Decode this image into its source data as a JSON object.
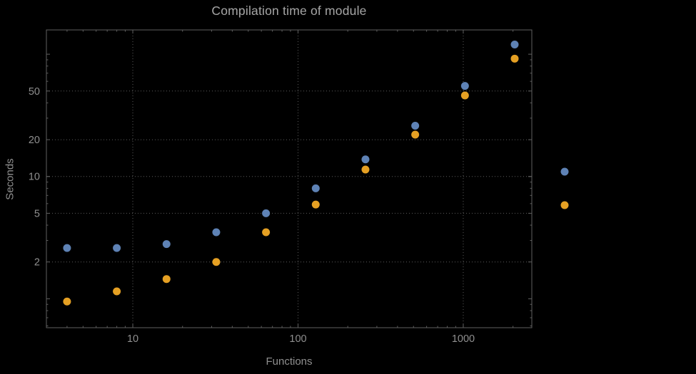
{
  "colors": {
    "background": "#000000",
    "frame": "#606060",
    "grid": "#5c5c5c",
    "tick_text": "#8f8f8f",
    "title_text": "#a6a6a6",
    "series1": "#5e82b5",
    "series2": "#e5a023"
  },
  "chart_data": {
    "type": "scatter",
    "title": "Compilation time of module",
    "xlabel": "Functions",
    "ylabel": "Seconds",
    "xscale": "log",
    "yscale": "log",
    "xlim": [
      3,
      2600
    ],
    "ylim": [
      0.58,
      158
    ],
    "grid": true,
    "legend_position": "right-outside",
    "x_ticks": [
      {
        "value": 10,
        "label": "10"
      },
      {
        "value": 100,
        "label": "100"
      },
      {
        "value": 1000,
        "label": "1000"
      }
    ],
    "y_ticks": [
      {
        "value": 2,
        "label": "2"
      },
      {
        "value": 5,
        "label": "5"
      },
      {
        "value": 10,
        "label": "10"
      },
      {
        "value": 20,
        "label": "20"
      },
      {
        "value": 50,
        "label": "50"
      }
    ],
    "x": [
      4,
      8,
      16,
      32,
      64,
      128,
      256,
      512,
      1024,
      2048
    ],
    "series": [
      {
        "color": "#5e82b5",
        "values": [
          2.6,
          2.6,
          2.8,
          3.5,
          5.0,
          8.0,
          13.8,
          26,
          55,
          120
        ]
      },
      {
        "color": "#e5a023",
        "values": [
          0.95,
          1.15,
          1.45,
          2.0,
          3.5,
          5.9,
          11.4,
          22,
          46,
          92
        ]
      }
    ]
  }
}
